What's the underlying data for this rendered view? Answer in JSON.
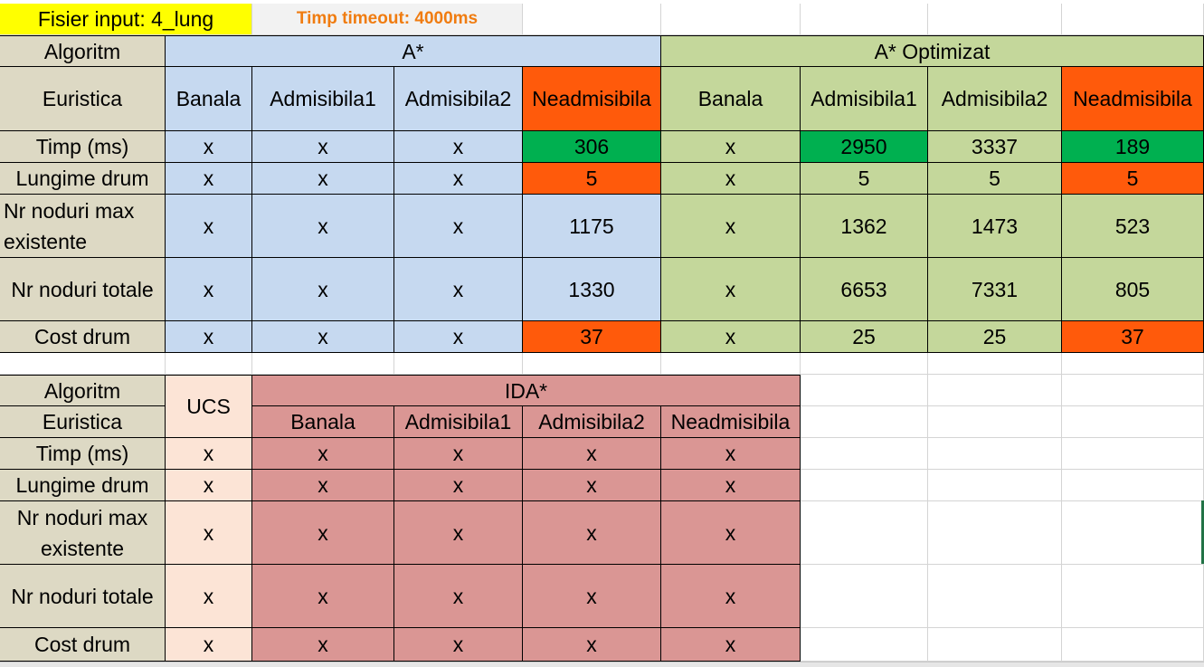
{
  "header": {
    "input_file": "Fisier input: 4_lung",
    "timeout": "Timp timeout: 4000ms"
  },
  "table1": {
    "algoritm_label": "Algoritm",
    "euristica_label": "Euristica",
    "group_astar": "A*",
    "group_astar_opt": "A* Optimizat",
    "heuristics": [
      "Banala",
      "Admisibila1",
      "Admisibila2",
      "Neadmisibila",
      "Banala",
      "Admisibila1",
      "Admisibila2",
      "Neadmisibila"
    ],
    "rows": [
      {
        "label": "Timp (ms)",
        "values": [
          "x",
          "x",
          "x",
          "306",
          "x",
          "2950",
          "3337",
          "189"
        ]
      },
      {
        "label": "Lungime drum",
        "values": [
          "x",
          "x",
          "x",
          "5",
          "x",
          "5",
          "5",
          "5"
        ]
      },
      {
        "label": "Nr noduri max existente",
        "values": [
          "x",
          "x",
          "x",
          "1175",
          "x",
          "1362",
          "1473",
          "523"
        ]
      },
      {
        "label": "Nr noduri totale",
        "values": [
          "x",
          "x",
          "x",
          "1330",
          "x",
          "6653",
          "7331",
          "805"
        ]
      },
      {
        "label": "Cost drum",
        "values": [
          "x",
          "x",
          "x",
          "37",
          "x",
          "25",
          "25",
          "37"
        ]
      }
    ]
  },
  "table2": {
    "algoritm_label": "Algoritm",
    "euristica_label": "Euristica",
    "ucs_label": "UCS",
    "group_ida": "IDA*",
    "heuristics": [
      "Banala",
      "Admisibila1",
      "Admisibila2",
      "Neadmisibila"
    ],
    "rows": [
      {
        "label": "Timp (ms)",
        "ucs": "x",
        "values": [
          "x",
          "x",
          "x",
          "x"
        ]
      },
      {
        "label": "Lungime drum",
        "ucs": "x",
        "values": [
          "x",
          "x",
          "x",
          "x"
        ]
      },
      {
        "label": "Nr noduri max existente",
        "ucs": "x",
        "values": [
          "x",
          "x",
          "x",
          "x"
        ]
      },
      {
        "label": "Nr noduri totale",
        "ucs": "x",
        "values": [
          "x",
          "x",
          "x",
          "x"
        ]
      },
      {
        "label": "Cost drum",
        "ucs": "x",
        "values": [
          "x",
          "x",
          "x",
          "x"
        ]
      }
    ]
  },
  "colors": {
    "astar": "#c6d9f0",
    "astar_opt": "#c4d79b",
    "label_col": "#ddd9c4",
    "ucs": "#fce4d6",
    "ida": "#da9694",
    "highlight_orange": "#ff5a0b",
    "highlight_green": "#00b050"
  }
}
